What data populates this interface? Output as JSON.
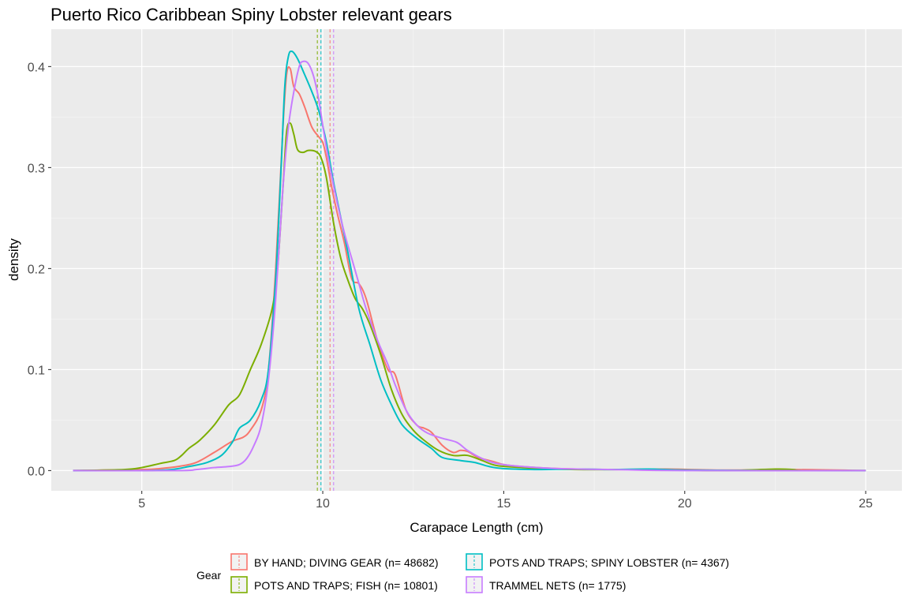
{
  "chart_data": {
    "type": "line",
    "subtype": "density",
    "title": "Puerto Rico Caribbean Spiny Lobster relevant gears",
    "xlabel": "Carapace Length (cm)",
    "ylabel": "density",
    "xlim": [
      2.5,
      26.0
    ],
    "ylim": [
      -0.02,
      0.437
    ],
    "x_ticks": [
      5,
      10,
      15,
      20,
      25
    ],
    "x_tick_labels": [
      "5",
      "10",
      "15",
      "20",
      "25"
    ],
    "y_ticks": [
      0.0,
      0.1,
      0.2,
      0.3,
      0.4
    ],
    "y_tick_labels": [
      "0.0",
      "0.1",
      "0.2",
      "0.3",
      "0.4"
    ],
    "grid": true,
    "panel_background": "#ebebeb",
    "legend": {
      "title": "Gear",
      "position": "bottom",
      "layout": [
        [
          0,
          2
        ],
        [
          1,
          3
        ]
      ]
    },
    "series": [
      {
        "name": "BY HAND; DIVING GEAR (n= 48682)",
        "color": "#F8766D",
        "mean": 10.2,
        "points": [
          [
            3.1,
            0.0
          ],
          [
            5.0,
            0.001
          ],
          [
            5.5,
            0.002
          ],
          [
            6.0,
            0.004
          ],
          [
            6.5,
            0.008
          ],
          [
            7.0,
            0.018
          ],
          [
            7.5,
            0.029
          ],
          [
            7.8,
            0.033
          ],
          [
            8.0,
            0.04
          ],
          [
            8.3,
            0.06
          ],
          [
            8.5,
            0.1
          ],
          [
            8.7,
            0.2
          ],
          [
            8.9,
            0.34
          ],
          [
            9.0,
            0.392
          ],
          [
            9.1,
            0.398
          ],
          [
            9.2,
            0.38
          ],
          [
            9.35,
            0.373
          ],
          [
            9.5,
            0.36
          ],
          [
            9.7,
            0.34
          ],
          [
            9.9,
            0.33
          ],
          [
            10.0,
            0.325
          ],
          [
            10.1,
            0.31
          ],
          [
            10.25,
            0.28
          ],
          [
            10.4,
            0.255
          ],
          [
            10.6,
            0.225
          ],
          [
            10.8,
            0.19
          ],
          [
            11.0,
            0.185
          ],
          [
            11.2,
            0.17
          ],
          [
            11.5,
            0.13
          ],
          [
            11.8,
            0.1
          ],
          [
            12.0,
            0.095
          ],
          [
            12.3,
            0.06
          ],
          [
            12.6,
            0.045
          ],
          [
            12.8,
            0.042
          ],
          [
            13.0,
            0.038
          ],
          [
            13.3,
            0.025
          ],
          [
            13.6,
            0.018
          ],
          [
            13.8,
            0.02
          ],
          [
            14.0,
            0.019
          ],
          [
            14.3,
            0.013
          ],
          [
            14.7,
            0.009
          ],
          [
            15.0,
            0.006
          ],
          [
            15.5,
            0.004
          ],
          [
            16.5,
            0.002
          ],
          [
            18.0,
            0.001
          ],
          [
            19.5,
            0.0015
          ],
          [
            21.0,
            0.0005
          ],
          [
            23.0,
            0.001
          ],
          [
            25.0,
            0.0
          ]
        ]
      },
      {
        "name": "POTS AND TRAPS; FISH (n= 10801)",
        "color": "#7CAE00",
        "mean": 9.85,
        "points": [
          [
            3.1,
            0.0
          ],
          [
            4.5,
            0.001
          ],
          [
            5.0,
            0.003
          ],
          [
            5.5,
            0.007
          ],
          [
            5.9,
            0.01
          ],
          [
            6.1,
            0.015
          ],
          [
            6.3,
            0.022
          ],
          [
            6.6,
            0.03
          ],
          [
            7.0,
            0.045
          ],
          [
            7.4,
            0.065
          ],
          [
            7.7,
            0.075
          ],
          [
            8.0,
            0.1
          ],
          [
            8.3,
            0.125
          ],
          [
            8.6,
            0.16
          ],
          [
            8.75,
            0.2
          ],
          [
            8.9,
            0.28
          ],
          [
            9.0,
            0.335
          ],
          [
            9.1,
            0.344
          ],
          [
            9.2,
            0.333
          ],
          [
            9.3,
            0.318
          ],
          [
            9.45,
            0.315
          ],
          [
            9.6,
            0.317
          ],
          [
            9.8,
            0.316
          ],
          [
            9.95,
            0.31
          ],
          [
            10.1,
            0.29
          ],
          [
            10.3,
            0.245
          ],
          [
            10.5,
            0.21
          ],
          [
            10.7,
            0.188
          ],
          [
            10.9,
            0.17
          ],
          [
            11.1,
            0.16
          ],
          [
            11.3,
            0.145
          ],
          [
            11.6,
            0.115
          ],
          [
            11.9,
            0.08
          ],
          [
            12.2,
            0.055
          ],
          [
            12.5,
            0.04
          ],
          [
            12.8,
            0.03
          ],
          [
            13.2,
            0.02
          ],
          [
            13.6,
            0.015
          ],
          [
            14.0,
            0.015
          ],
          [
            14.4,
            0.01
          ],
          [
            14.8,
            0.005
          ],
          [
            15.5,
            0.003
          ],
          [
            17.0,
            0.001
          ],
          [
            19.0,
            0.001
          ],
          [
            21.0,
            0.0
          ],
          [
            22.5,
            0.0015
          ],
          [
            23.0,
            0.001
          ],
          [
            23.3,
            0.0
          ],
          [
            25.0,
            0.0
          ]
        ]
      },
      {
        "name": "POTS AND TRAPS; SPINY LOBSTER (n= 4367)",
        "color": "#00BFC4",
        "mean": 9.95,
        "points": [
          [
            3.1,
            0.0
          ],
          [
            5.0,
            0.0
          ],
          [
            5.8,
            0.001
          ],
          [
            6.3,
            0.004
          ],
          [
            6.8,
            0.008
          ],
          [
            7.2,
            0.015
          ],
          [
            7.5,
            0.028
          ],
          [
            7.7,
            0.042
          ],
          [
            8.0,
            0.05
          ],
          [
            8.3,
            0.07
          ],
          [
            8.5,
            0.1
          ],
          [
            8.7,
            0.19
          ],
          [
            8.85,
            0.3
          ],
          [
            8.95,
            0.38
          ],
          [
            9.05,
            0.41
          ],
          [
            9.15,
            0.415
          ],
          [
            9.3,
            0.408
          ],
          [
            9.5,
            0.392
          ],
          [
            9.7,
            0.375
          ],
          [
            9.9,
            0.355
          ],
          [
            10.1,
            0.325
          ],
          [
            10.3,
            0.285
          ],
          [
            10.5,
            0.25
          ],
          [
            10.7,
            0.215
          ],
          [
            11.0,
            0.16
          ],
          [
            11.3,
            0.125
          ],
          [
            11.6,
            0.09
          ],
          [
            11.9,
            0.065
          ],
          [
            12.2,
            0.045
          ],
          [
            12.6,
            0.032
          ],
          [
            13.0,
            0.022
          ],
          [
            13.3,
            0.013
          ],
          [
            13.8,
            0.01
          ],
          [
            14.2,
            0.008
          ],
          [
            14.6,
            0.004
          ],
          [
            15.0,
            0.002
          ],
          [
            16.0,
            0.001
          ],
          [
            17.0,
            0.0015
          ],
          [
            18.0,
            0.001
          ],
          [
            19.0,
            0.0015
          ],
          [
            20.0,
            0.0005
          ],
          [
            22.0,
            0.0
          ],
          [
            25.0,
            0.0
          ]
        ]
      },
      {
        "name": "TRAMMEL NETS (n= 1775)",
        "color": "#C77CFF",
        "mean": 10.3,
        "points": [
          [
            3.1,
            0.0
          ],
          [
            6.0,
            0.0
          ],
          [
            6.5,
            0.001
          ],
          [
            7.0,
            0.003
          ],
          [
            7.4,
            0.004
          ],
          [
            7.7,
            0.006
          ],
          [
            7.9,
            0.012
          ],
          [
            8.1,
            0.025
          ],
          [
            8.3,
            0.045
          ],
          [
            8.5,
            0.09
          ],
          [
            8.7,
            0.17
          ],
          [
            8.9,
            0.28
          ],
          [
            9.05,
            0.34
          ],
          [
            9.2,
            0.375
          ],
          [
            9.35,
            0.4
          ],
          [
            9.45,
            0.405
          ],
          [
            9.6,
            0.403
          ],
          [
            9.75,
            0.39
          ],
          [
            9.9,
            0.365
          ],
          [
            10.05,
            0.33
          ],
          [
            10.2,
            0.3
          ],
          [
            10.4,
            0.265
          ],
          [
            10.6,
            0.235
          ],
          [
            10.8,
            0.21
          ],
          [
            11.0,
            0.185
          ],
          [
            11.2,
            0.16
          ],
          [
            11.5,
            0.13
          ],
          [
            11.8,
            0.105
          ],
          [
            12.0,
            0.085
          ],
          [
            12.3,
            0.06
          ],
          [
            12.6,
            0.045
          ],
          [
            12.9,
            0.037
          ],
          [
            13.3,
            0.032
          ],
          [
            13.7,
            0.028
          ],
          [
            14.0,
            0.02
          ],
          [
            14.4,
            0.012
          ],
          [
            14.8,
            0.007
          ],
          [
            15.5,
            0.004
          ],
          [
            16.5,
            0.002
          ],
          [
            18.0,
            0.001
          ],
          [
            20.0,
            0.0
          ],
          [
            25.0,
            0.0
          ]
        ]
      }
    ]
  }
}
